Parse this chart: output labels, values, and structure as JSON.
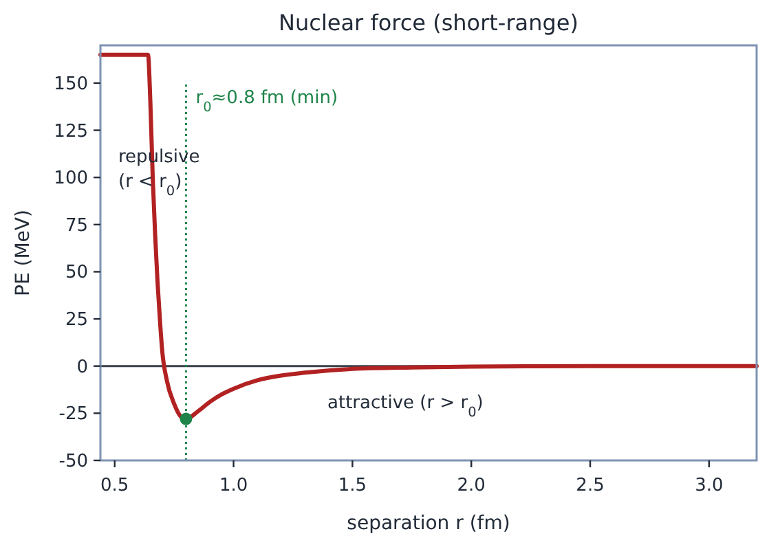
{
  "chart_data": {
    "type": "line",
    "title": "Nuclear force (short-range)",
    "xlabel": "separation r (fm)",
    "ylabel": "PE (MeV)",
    "xlim": [
      0.44,
      3.2
    ],
    "ylim": [
      -50,
      170
    ],
    "xticks": [
      {
        "value": 0.5,
        "label": "0.5"
      },
      {
        "value": 1.0,
        "label": "1.0"
      },
      {
        "value": 1.5,
        "label": "1.5"
      },
      {
        "value": 2.0,
        "label": "2.0"
      },
      {
        "value": 2.5,
        "label": "2.5"
      },
      {
        "value": 3.0,
        "label": "3.0"
      }
    ],
    "yticks": [
      -50,
      -25,
      0,
      25,
      50,
      75,
      100,
      125,
      150
    ],
    "series": [
      {
        "color": "#b22222",
        "x": [
          0.44,
          0.64,
          0.65,
          0.66,
          0.67,
          0.68,
          0.69,
          0.7,
          0.72,
          0.75,
          0.78,
          0.8,
          0.85,
          0.9,
          0.95,
          1.0,
          1.1,
          1.2,
          1.3,
          1.5,
          1.75,
          2.0,
          2.5,
          3.2
        ],
        "values": [
          165,
          165,
          140,
          100,
          70,
          45,
          25,
          8,
          -8,
          -20,
          -27,
          -28,
          -24,
          -19,
          -15,
          -12,
          -7.5,
          -5,
          -3.5,
          -1.5,
          -0.7,
          -0.3,
          0,
          0
        ]
      },
      {
        "type": "scatter",
        "color": "#1e8449",
        "x": [
          0.8
        ],
        "values": [
          -28
        ],
        "marker": "circle"
      }
    ],
    "ref_lines": [
      {
        "axis": "y",
        "value": 0,
        "color": "#3a414a",
        "line_style": "solid"
      },
      {
        "axis": "x",
        "value": 0.8,
        "label": "r$_{0}$≈0.8 fm (min)",
        "color": "#1e8449",
        "line_style": "dotted"
      }
    ],
    "annotations": [
      "repulsive\n(r < r$_{0}$)",
      "attractive (r > r$_{0}$)"
    ],
    "grid": false
  }
}
